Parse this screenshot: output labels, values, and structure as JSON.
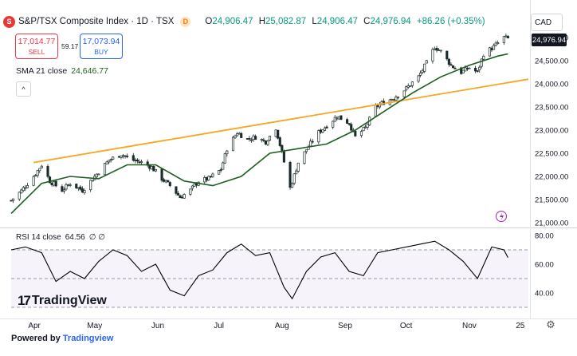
{
  "header": {
    "symbol_initial": "S",
    "title": "S&P/TSX Composite Index · 1D · TSX",
    "badge": "D",
    "ohlc": [
      {
        "k": "O",
        "v": "24,906.47"
      },
      {
        "k": "H",
        "v": "25,082.87"
      },
      {
        "k": "L",
        "v": "24,906.47"
      },
      {
        "k": "C",
        "v": "24,976.94"
      },
      {
        "k": "",
        "v": "+86.26 (+0.35%)"
      }
    ]
  },
  "trade": {
    "sell_price": "17,014.77",
    "sell_label": "SELL",
    "spread": "59.17",
    "buy_price": "17,073.94",
    "buy_label": "BUY"
  },
  "sma": {
    "label": "SMA 21 close",
    "value": "24,646.77"
  },
  "collapse_icon": "chevron-up-icon",
  "collapse_glyph": "^",
  "currency": "CAD",
  "price_badge": "24,976.94",
  "price_axis_labels": [
    "25,000.00",
    "24,500.00",
    "24,000.00",
    "23,500.00",
    "23,000.00",
    "22,500.00",
    "22,000.00",
    "21,500.00",
    "21,000.00"
  ],
  "rsi": {
    "label": "RSI 14 close",
    "value": "64.56",
    "extra": "∅ ∅"
  },
  "rsi_axis_labels": [
    "80.00",
    "60.00",
    "40.00"
  ],
  "time_axis": [
    "Apr",
    "May",
    "Jun",
    "Jul",
    "Aug",
    "Sep",
    "Oct",
    "Nov",
    "25"
  ],
  "watermark": "TradingView",
  "footer": {
    "prefix": "Powered by ",
    "brand": "Tradingview"
  },
  "colors": {
    "up": "#089981",
    "down": "#f23645",
    "candle": "#1b2a2a",
    "sma": "#1b5e20",
    "trendline": "#f5a623",
    "rsi": "#000000",
    "rsi_band": "#7e57c2",
    "accent": "#2962ff",
    "lightning": "#9c27b0"
  },
  "chart_data": [
    {
      "type": "candlestick",
      "title": "S&P/TSX Composite Index · 1D · TSX",
      "ylim": [
        21000,
        25200
      ],
      "x_ticks": [
        "Apr",
        "May",
        "Jun",
        "Jul",
        "Aug",
        "Sep",
        "Oct",
        "Nov",
        "25"
      ],
      "close_path": [
        [
          "Mar 21",
          21480
        ],
        [
          "Mar 26",
          21690
        ],
        [
          "Apr 1",
          22000
        ],
        [
          "Apr 5",
          22250
        ],
        [
          "Apr 9",
          21900
        ],
        [
          "Apr 15",
          21700
        ],
        [
          "Apr 19",
          21850
        ],
        [
          "Apr 25",
          21700
        ],
        [
          "Apr 30",
          21950
        ],
        [
          "May 3",
          22100
        ],
        [
          "May 8",
          22350
        ],
        [
          "May 14",
          22480
        ],
        [
          "May 20",
          22350
        ],
        [
          "May 24",
          22300
        ],
        [
          "May 29",
          22200
        ],
        [
          "Jun 3",
          21950
        ],
        [
          "Jun 7",
          21800
        ],
        [
          "Jun 12",
          21550
        ],
        [
          "Jun 17",
          21700
        ],
        [
          "Jun 21",
          21900
        ],
        [
          "Jun 26",
          21950
        ],
        [
          "Jul 2",
          22150
        ],
        [
          "Jul 5",
          22600
        ],
        [
          "Jul 10",
          22950
        ],
        [
          "Jul 15",
          22800
        ],
        [
          "Jul 19",
          22850
        ],
        [
          "Jul 24",
          22750
        ],
        [
          "Jul 29",
          23050
        ],
        [
          "Aug 1",
          22500
        ],
        [
          "Aug 5",
          21750
        ],
        [
          "Aug 9",
          22300
        ],
        [
          "Aug 14",
          22650
        ],
        [
          "Aug 19",
          22950
        ],
        [
          "Aug 23",
          23100
        ],
        [
          "Aug 28",
          23300
        ],
        [
          "Sep 3",
          23150
        ],
        [
          "Sep 6",
          22850
        ],
        [
          "Sep 11",
          23050
        ],
        [
          "Sep 16",
          23500
        ],
        [
          "Sep 20",
          23600
        ],
        [
          "Sep 25",
          23700
        ],
        [
          "Oct 1",
          23900
        ],
        [
          "Oct 7",
          24150
        ],
        [
          "Oct 11",
          24450
        ],
        [
          "Oct 15",
          24800
        ],
        [
          "Oct 18",
          24700
        ],
        [
          "Oct 23",
          24400
        ],
        [
          "Oct 28",
          24250
        ],
        [
          "Nov 1",
          24350
        ],
        [
          "Nov 5",
          24250
        ],
        [
          "Nov 8",
          24650
        ],
        [
          "Nov 13",
          24800
        ],
        [
          "Nov 18",
          25000
        ],
        [
          "Nov 20",
          24977
        ]
      ],
      "sma21_path": [
        [
          "Mar 21",
          21200
        ],
        [
          "Apr 5",
          21850
        ],
        [
          "Apr 19",
          22000
        ],
        [
          "May 3",
          21950
        ],
        [
          "May 17",
          22250
        ],
        [
          "May 31",
          22250
        ],
        [
          "Jun 14",
          21900
        ],
        [
          "Jun 28",
          21800
        ],
        [
          "Jul 12",
          22000
        ],
        [
          "Jul 26",
          22500
        ],
        [
          "Aug 9",
          22600
        ],
        [
          "Aug 23",
          22700
        ],
        [
          "Sep 6",
          23000
        ],
        [
          "Sep 20",
          23400
        ],
        [
          "Oct 4",
          23800
        ],
        [
          "Oct 18",
          24150
        ],
        [
          "Nov 1",
          24400
        ],
        [
          "Nov 15",
          24600
        ],
        [
          "Nov 20",
          24647
        ]
      ],
      "trendlines": [
        {
          "from": [
            "Apr 1",
            22300
          ],
          "to": [
            "Nov 30",
            24100
          ]
        }
      ],
      "last_close": 24976.94,
      "sma21_last": 24646.77
    },
    {
      "type": "line",
      "title": "RSI 14 close",
      "ylim": [
        30,
        80
      ],
      "bands": [
        70,
        50,
        30
      ],
      "path": [
        [
          "Mar 21",
          70
        ],
        [
          "Mar 28",
          72
        ],
        [
          "Apr 5",
          68
        ],
        [
          "Apr 12",
          48
        ],
        [
          "Apr 19",
          55
        ],
        [
          "Apr 26",
          50
        ],
        [
          "May 3",
          62
        ],
        [
          "May 10",
          70
        ],
        [
          "May 17",
          66
        ],
        [
          "May 24",
          55
        ],
        [
          "May 31",
          60
        ],
        [
          "Jun 7",
          42
        ],
        [
          "Jun 14",
          38
        ],
        [
          "Jun 21",
          52
        ],
        [
          "Jun 28",
          56
        ],
        [
          "Jul 5",
          68
        ],
        [
          "Jul 12",
          74
        ],
        [
          "Jul 19",
          66
        ],
        [
          "Jul 26",
          68
        ],
        [
          "Aug 2",
          44
        ],
        [
          "Aug 6",
          36
        ],
        [
          "Aug 13",
          55
        ],
        [
          "Aug 20",
          65
        ],
        [
          "Aug 27",
          68
        ],
        [
          "Sep 3",
          55
        ],
        [
          "Sep 10",
          52
        ],
        [
          "Sep 17",
          68
        ],
        [
          "Sep 24",
          70
        ],
        [
          "Oct 1",
          72
        ],
        [
          "Oct 8",
          74
        ],
        [
          "Oct 15",
          76
        ],
        [
          "Oct 22",
          70
        ],
        [
          "Oct 29",
          62
        ],
        [
          "Nov 5",
          50
        ],
        [
          "Nov 12",
          72
        ],
        [
          "Nov 18",
          70
        ],
        [
          "Nov 20",
          64.56
        ]
      ],
      "last_value": 64.56
    }
  ]
}
